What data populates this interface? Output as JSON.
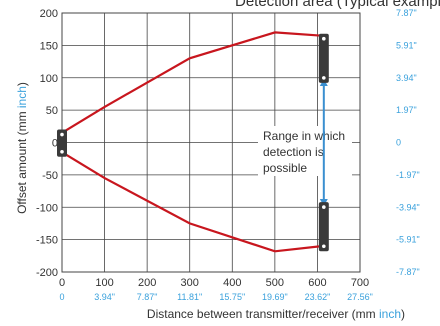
{
  "chart_data": {
    "type": "line",
    "title": "Detection area (Typical example)",
    "xlabel_text": "Distance between transmitter/receiver (mm ",
    "xlabel_unit": "inch",
    "xlabel_close": ")",
    "ylabel_text": "Offset amount (mm ",
    "ylabel_unit": "inch",
    "ylabel_close": ")",
    "xlim": [
      0,
      700
    ],
    "ylim": [
      -200,
      200
    ],
    "x_ticks_mm": [
      "0",
      "100",
      "200",
      "300",
      "400",
      "500",
      "600",
      "700"
    ],
    "x_ticks_inch": [
      "0",
      "3.94\"",
      "7.87\"",
      "11.81\"",
      "15.75\"",
      "19.69\"",
      "23.62\"",
      "27.56\""
    ],
    "y_ticks_mm": [
      "200",
      "150",
      "100",
      "50",
      "0",
      "-50",
      "-100",
      "-150",
      "-200"
    ],
    "y_ticks_inch": [
      "7.87\"",
      "5.91\"",
      "3.94\"",
      "1.97\"",
      "0",
      "-1.97\"",
      "-3.94\"",
      "-5.91\"",
      "-7.87\""
    ],
    "series": [
      {
        "x": [
          0,
          100,
          300,
          500,
          610
        ],
        "y": [
          15,
          55,
          130,
          170,
          165
        ]
      },
      {
        "x": [
          0,
          100,
          300,
          500,
          610
        ],
        "y": [
          -15,
          -55,
          -125,
          -168,
          -160
        ]
      }
    ],
    "annotation": [
      "Range in which",
      "detection is",
      "possible"
    ],
    "range_marker": {
      "x": 615,
      "y_top": 98,
      "y_bottom": -98
    },
    "colors": {
      "boundary": "#c8161e",
      "inch_units": "#3aa1dc",
      "range_arrow": "#3a8fd0",
      "sensor": "#3a3a3a"
    }
  }
}
